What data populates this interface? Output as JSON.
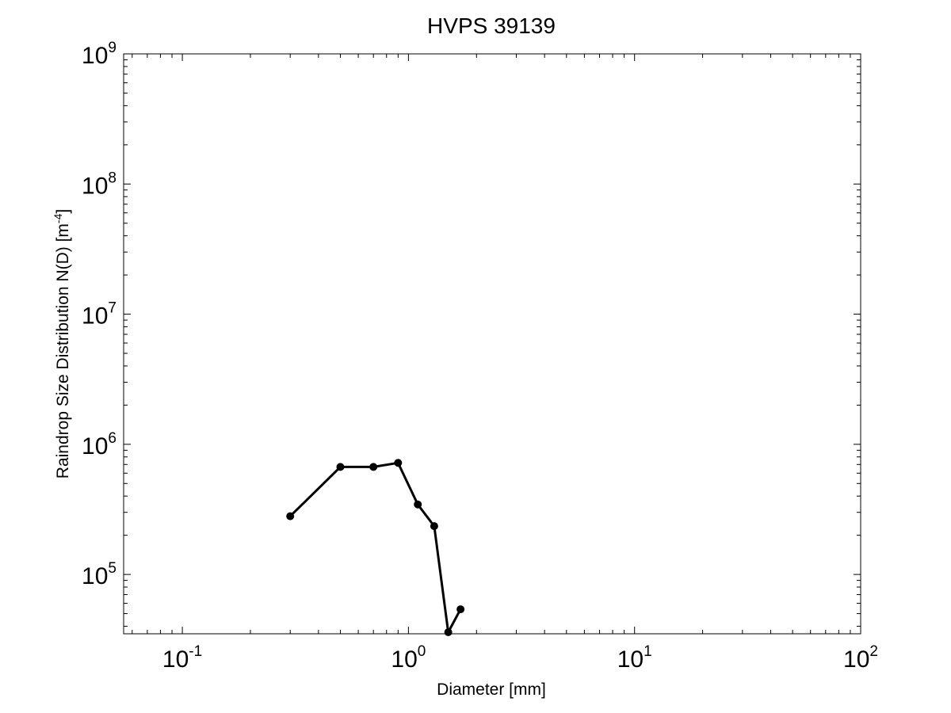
{
  "chart_data": {
    "type": "line",
    "title": "HVPS 39139",
    "xlabel": "Diameter [mm]",
    "ylabel": "Raindrop Size Distribution N(D) [m",
    "ylabel_exp": "-4",
    "ylabel_suffix": "]",
    "xscale": "log",
    "yscale": "log",
    "xlim": [
      0.055,
      100
    ],
    "ylim": [
      35000,
      1000000000
    ],
    "x_ticks": [
      {
        "value": 0.1,
        "base": "10",
        "exp": "-1"
      },
      {
        "value": 1,
        "base": "10",
        "exp": "0"
      },
      {
        "value": 10,
        "base": "10",
        "exp": "1"
      },
      {
        "value": 100,
        "base": "10",
        "exp": "2"
      }
    ],
    "y_ticks": [
      {
        "value": 100000,
        "base": "10",
        "exp": "5"
      },
      {
        "value": 1000000,
        "base": "10",
        "exp": "6"
      },
      {
        "value": 10000000,
        "base": "10",
        "exp": "7"
      },
      {
        "value": 100000000,
        "base": "10",
        "exp": "8"
      },
      {
        "value": 1000000000,
        "base": "10",
        "exp": "9"
      }
    ],
    "grid": false,
    "series": [
      {
        "color": "#000000",
        "marker": "circle",
        "x": [
          0.3,
          0.5,
          0.7,
          0.9,
          1.1,
          1.3,
          1.5,
          1.7
        ],
        "y": [
          280000,
          670000,
          670000,
          720000,
          345000,
          235000,
          36000,
          54000
        ]
      }
    ]
  }
}
